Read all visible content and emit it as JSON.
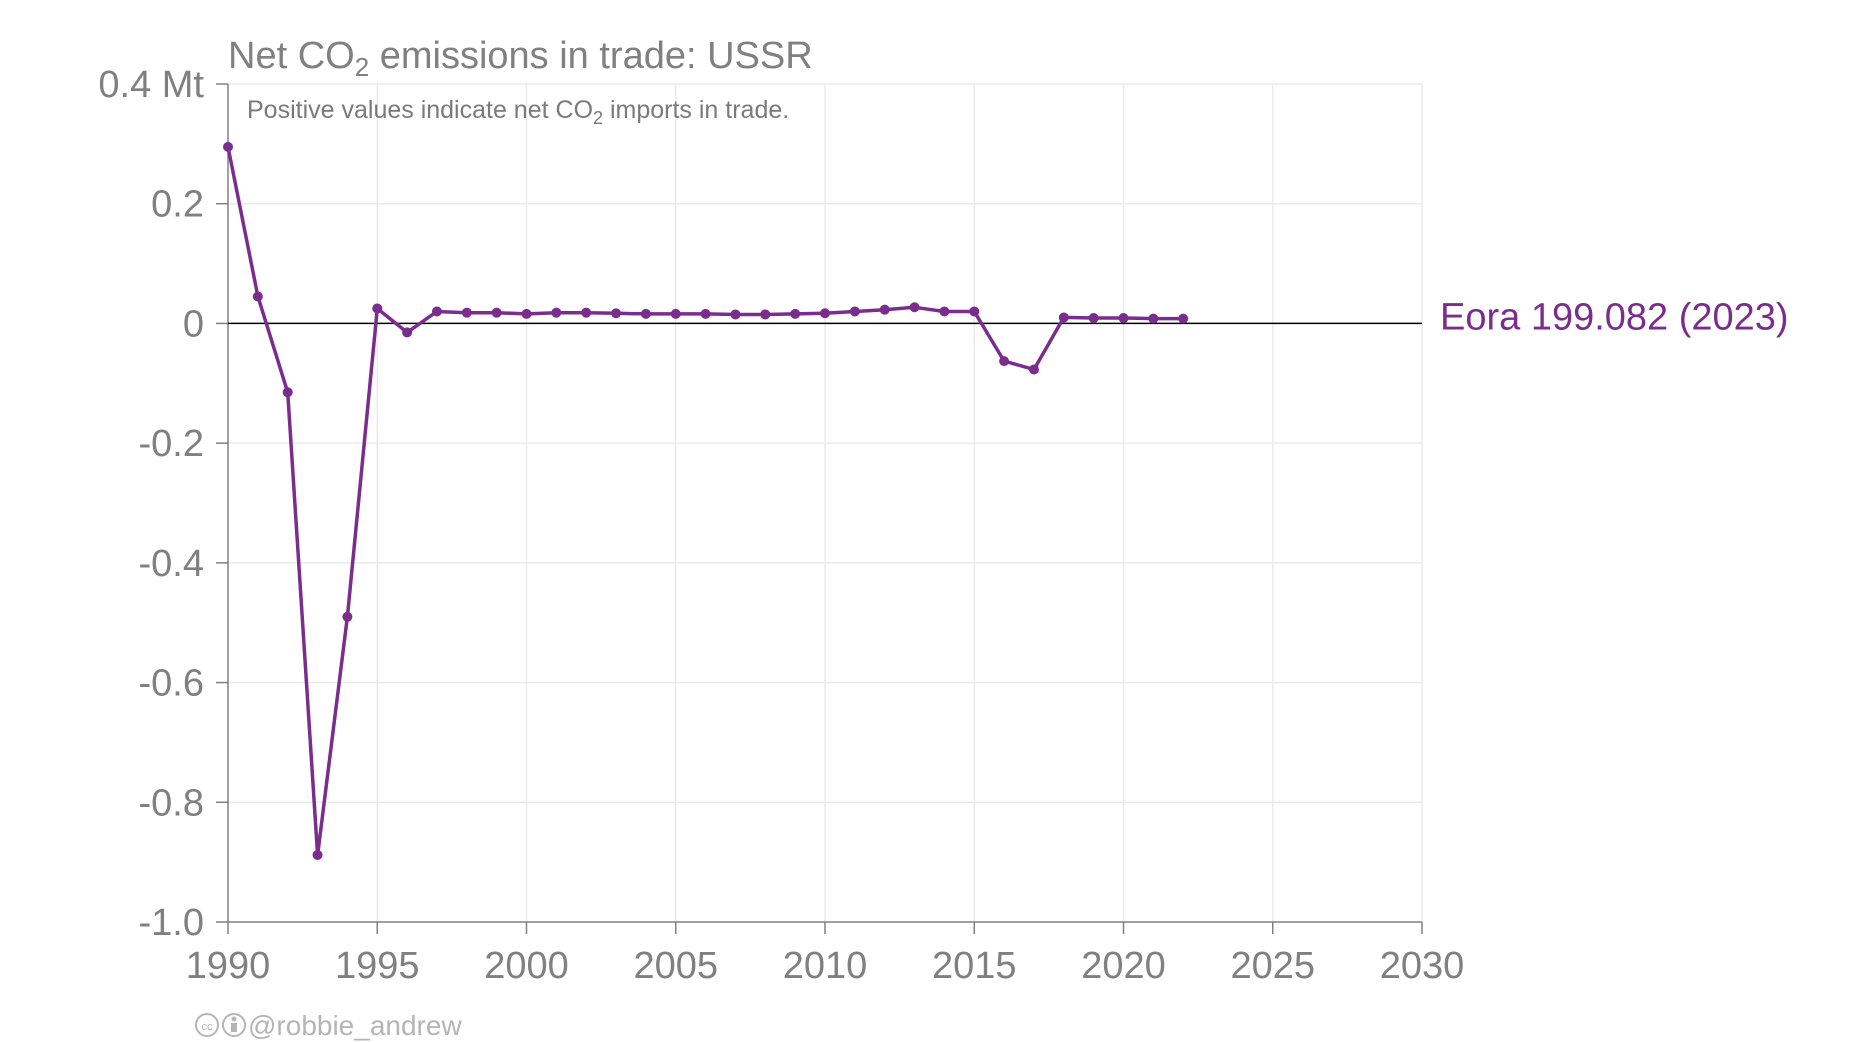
{
  "chart_data": {
    "type": "line",
    "title": {
      "prefix": "Net CO",
      "sub": "2",
      "suffix": " emissions in trade: USSR"
    },
    "subtitle": {
      "prefix": "Positive values indicate net CO",
      "sub": "2",
      "suffix": " imports in trade."
    },
    "y_unit_label": "0.4 Mt",
    "xlim": [
      1990,
      2030
    ],
    "ylim": [
      -1.0,
      0.4
    ],
    "x_ticks": [
      1990,
      1995,
      2000,
      2005,
      2010,
      2015,
      2020,
      2025,
      2030
    ],
    "x_tick_labels": [
      "1990",
      "1995",
      "2000",
      "2005",
      "2010",
      "2015",
      "2020",
      "2025",
      "2030"
    ],
    "y_ticks": [
      -1.0,
      -0.8,
      -0.6,
      -0.4,
      -0.2,
      0,
      0.2,
      0.4
    ],
    "y_tick_labels": [
      "-1.0",
      "-0.8",
      "-0.6",
      "-0.4",
      "-0.2",
      "0",
      "0.2",
      "0.4 Mt"
    ],
    "grid": true,
    "series": [
      {
        "name": "Eora 199.082 (2023)",
        "color": "#7b2d8e",
        "x": [
          1990,
          1991,
          1992,
          1993,
          1994,
          1995,
          1996,
          1997,
          1998,
          1999,
          2000,
          2001,
          2002,
          2003,
          2004,
          2005,
          2006,
          2007,
          2008,
          2009,
          2010,
          2011,
          2012,
          2013,
          2014,
          2015,
          2016,
          2017,
          2018,
          2019,
          2020,
          2021,
          2022
        ],
        "values": [
          0.295,
          0.045,
          -0.115,
          -0.888,
          -0.49,
          0.025,
          -0.015,
          0.02,
          0.018,
          0.018,
          0.016,
          0.018,
          0.018,
          0.017,
          0.016,
          0.016,
          0.016,
          0.015,
          0.015,
          0.016,
          0.017,
          0.02,
          0.023,
          0.027,
          0.02,
          0.02,
          -0.063,
          -0.077,
          0.01,
          0.009,
          0.009,
          0.008,
          0.008
        ]
      }
    ]
  },
  "credit": {
    "icons": [
      "cc-icon",
      "by-icon"
    ],
    "text": "@robbie_andrew"
  }
}
